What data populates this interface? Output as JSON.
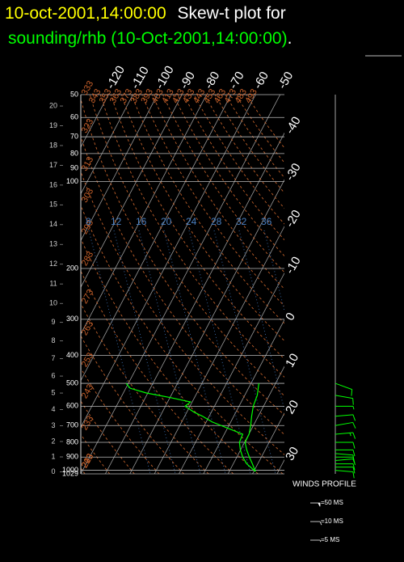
{
  "chart_data": {
    "type": "skewt",
    "title": {
      "date": "10-oct-2001,14:00:00",
      "text": "Skew-t plot for",
      "source": "sounding/rhb (10-Oct-2001,14:00:00)",
      "end": "."
    },
    "plim": [
      50,
      1029
    ],
    "pticks": [
      50,
      60,
      70,
      80,
      90,
      100,
      200,
      300,
      400,
      500,
      600,
      700,
      800,
      900,
      1000,
      1029
    ],
    "tlim": [
      -50,
      33
    ],
    "tticks": [
      -120,
      -110,
      -100,
      -90,
      -80,
      -70,
      -60,
      -50,
      -40,
      -30,
      -20,
      -10,
      0,
      10,
      20,
      30
    ],
    "heights": [
      0,
      1,
      2,
      3,
      4,
      5,
      6,
      7,
      8,
      9,
      10,
      11,
      12,
      13,
      14,
      15,
      16,
      17,
      18,
      19,
      20
    ],
    "mixing_ratios": [
      8,
      12,
      16,
      20,
      24,
      28,
      32,
      36
    ],
    "adiabats": [
      203,
      213,
      223,
      233,
      243,
      253,
      263,
      273,
      283,
      293,
      303,
      313,
      323,
      333,
      343,
      353,
      363,
      373,
      383,
      393,
      403,
      413,
      423,
      433,
      443,
      453,
      463,
      473,
      483,
      493
    ],
    "profiles": [
      {
        "color": "#00ff00",
        "pressure": [
          1010,
          950,
          900,
          850,
          800,
          750,
          700,
          650,
          600,
          550,
          500
        ],
        "values": [
          20.7,
          17.8,
          15.1,
          12.5,
          10.2,
          10.1,
          8.9,
          7.3,
          5.8,
          5.1,
          3.2
        ]
      },
      {
        "color": "#00ff00",
        "pressure": [
          1010,
          950,
          900,
          850,
          800,
          750,
          680,
          650,
          630,
          600,
          580,
          560,
          540,
          520,
          500
        ],
        "values": [
          20.7,
          15.5,
          12.4,
          9.9,
          7.9,
          7.5,
          -7.6,
          -12.7,
          -16.9,
          -22,
          -20.7,
          -29.8,
          -40.6,
          -48.2,
          -50.9
        ]
      }
    ],
    "wind": {
      "label": "WINDS PROFILE",
      "color": "#00ff00",
      "pressure": [
        1000,
        975,
        950,
        925,
        900,
        875,
        850,
        800,
        750,
        700,
        650,
        600,
        550,
        500
      ],
      "speed": [
        10,
        10,
        10,
        10,
        10,
        10,
        10,
        10,
        15,
        10,
        10,
        5,
        10,
        10
      ],
      "direction": [
        95,
        90,
        90,
        85,
        90,
        95,
        90,
        90,
        85,
        80,
        85,
        90,
        100,
        110
      ],
      "legend": [
        {
          "speed": 50,
          "label": "=50 MS"
        },
        {
          "speed": 10,
          "label": "=10 MS"
        },
        {
          "speed": 5,
          "label": "=5 MS"
        }
      ]
    }
  }
}
